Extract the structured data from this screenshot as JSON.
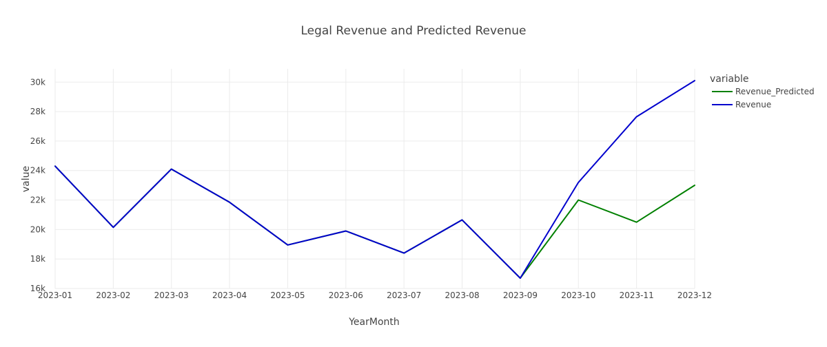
{
  "chart_data": {
    "type": "line",
    "title": "Legal Revenue and Predicted Revenue",
    "xlabel": "YearMonth",
    "ylabel": "value",
    "categories": [
      "2023-01",
      "2023-02",
      "2023-03",
      "2023-04",
      "2023-05",
      "2023-06",
      "2023-07",
      "2023-08",
      "2023-09",
      "2023-10",
      "2023-11",
      "2023-12"
    ],
    "ylim": [
      16000,
      30900
    ],
    "yticks": [
      16000,
      18000,
      20000,
      22000,
      24000,
      26000,
      28000,
      30000
    ],
    "ytick_labels": [
      "16k",
      "18k",
      "20k",
      "22k",
      "24k",
      "26k",
      "28k",
      "30k"
    ],
    "grid": true,
    "legend": {
      "title": "variable",
      "placement": "top-right"
    },
    "series": [
      {
        "name": "Revenue_Predicted",
        "color": "#008000",
        "values": [
          24300,
          20150,
          24100,
          21850,
          18950,
          19900,
          18400,
          20650,
          16700,
          22000,
          20500,
          23000
        ]
      },
      {
        "name": "Revenue",
        "color": "#0000CD",
        "values": [
          24300,
          20150,
          24100,
          21850,
          18950,
          19900,
          18400,
          20650,
          16700,
          23200,
          27650,
          30100
        ]
      }
    ]
  }
}
